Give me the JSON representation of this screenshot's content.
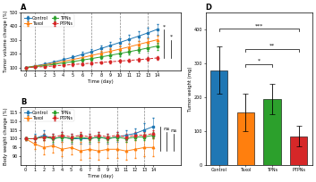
{
  "chart_data": [
    {
      "type": "line",
      "title": "A",
      "x": [
        0,
        1,
        2,
        3,
        4,
        5,
        6,
        7,
        8,
        9,
        10,
        11,
        12,
        13,
        14
      ],
      "xlabel": "Time (day)",
      "ylabel": "Tumor volume change (%)",
      "xlim": [
        -0.5,
        16.5
      ],
      "xticks": [
        0,
        1,
        2,
        3,
        4,
        5,
        6,
        7,
        8,
        9,
        10,
        11,
        12,
        13,
        14
      ],
      "ylim": [
        80,
        500
      ],
      "yticks": [
        100,
        200,
        300,
        400,
        500
      ],
      "legend": "upper left",
      "series": [
        {
          "name": "Control",
          "color": "#1f77b4",
          "marker": "square",
          "line_style": "solid",
          "values": [
            100,
            112,
            125,
            140,
            158,
            175,
            195,
            215,
            238,
            260,
            282,
            305,
            328,
            352,
            378
          ],
          "errors": [
            5,
            8,
            10,
            12,
            14,
            16,
            18,
            20,
            22,
            25,
            27,
            30,
            33,
            36,
            40
          ]
        },
        {
          "name": "Taxol",
          "color": "#ff7f0e",
          "marker": "triangle",
          "line_style": "solid",
          "values": [
            100,
            110,
            120,
            132,
            145,
            158,
            172,
            188,
            203,
            218,
            234,
            250,
            268,
            285,
            302
          ],
          "errors": [
            5,
            7,
            9,
            11,
            13,
            14,
            16,
            18,
            19,
            21,
            23,
            25,
            27,
            30,
            32
          ]
        },
        {
          "name": "TPNs",
          "color": "#2ca02c",
          "marker": "circle",
          "line_style": "solid",
          "values": [
            100,
            107,
            114,
            123,
            133,
            143,
            154,
            165,
            177,
            189,
            202,
            215,
            228,
            242,
            256
          ],
          "errors": [
            4,
            6,
            8,
            9,
            10,
            12,
            13,
            14,
            15,
            17,
            18,
            20,
            22,
            24,
            26
          ]
        },
        {
          "name": "PTPNs",
          "color": "#d62728",
          "marker": "circle",
          "line_style": "dashed",
          "values": [
            100,
            103,
            107,
            112,
            117,
            122,
            127,
            132,
            137,
            142,
            147,
            152,
            157,
            163,
            170
          ],
          "errors": [
            4,
            5,
            6,
            7,
            7,
            8,
            8,
            9,
            9,
            10,
            10,
            11,
            11,
            12,
            13
          ]
        }
      ],
      "vlines": {
        "x": [
          1,
          4,
          7,
          10,
          13
        ],
        "color": "#888888",
        "line_style": "dashed"
      },
      "brackets": [
        {
          "y1": 170,
          "y2": 378,
          "label": "*"
        },
        {
          "y1": 170,
          "y2": 302,
          "label": "*"
        }
      ]
    },
    {
      "type": "line",
      "title": "B",
      "x": [
        0,
        1,
        2,
        3,
        4,
        5,
        6,
        7,
        8,
        9,
        10,
        11,
        12,
        13,
        14
      ],
      "xlabel": "Time (day)",
      "ylabel": "Body weight change (%)",
      "xlim": [
        -0.5,
        17.0
      ],
      "xticks": [
        0,
        1,
        2,
        3,
        4,
        5,
        6,
        7,
        8,
        9,
        10,
        11,
        12,
        13,
        14
      ],
      "ylim": [
        85,
        118
      ],
      "yticks": [
        90,
        95,
        100,
        105,
        110,
        115
      ],
      "legend": "upper left",
      "series": [
        {
          "name": "Control",
          "color": "#1f77b4",
          "marker": "square",
          "line_style": "solid",
          "values": [
            100,
            100,
            102,
            100,
            101,
            100,
            100,
            100,
            101,
            100,
            101,
            102,
            103,
            105,
            107
          ],
          "errors": [
            1,
            3,
            3,
            3,
            3,
            3,
            3,
            3,
            3,
            3,
            3,
            3,
            3,
            4,
            5
          ]
        },
        {
          "name": "Taxol",
          "color": "#ff7f0e",
          "marker": "triangle",
          "line_style": "solid",
          "values": [
            100,
            97,
            95,
            96,
            94,
            95,
            93,
            94,
            93,
            94,
            94,
            93,
            94,
            95,
            95
          ],
          "errors": [
            1,
            3,
            4,
            4,
            4,
            4,
            5,
            5,
            5,
            5,
            5,
            5,
            5,
            5,
            5
          ]
        },
        {
          "name": "TPNs",
          "color": "#2ca02c",
          "marker": "circle",
          "line_style": "solid",
          "values": [
            100,
            100,
            101,
            100,
            101,
            100,
            101,
            100,
            101,
            100,
            101,
            100,
            101,
            101,
            102
          ],
          "errors": [
            1,
            2,
            2,
            2,
            2,
            2,
            2,
            2,
            2,
            2,
            2,
            2,
            2,
            2,
            2
          ]
        },
        {
          "name": "PTPNs",
          "color": "#d62728",
          "marker": "circle",
          "line_style": "dashed",
          "values": [
            100,
            100,
            101,
            101,
            102,
            101,
            102,
            101,
            102,
            101,
            102,
            101,
            102,
            102,
            103
          ],
          "errors": [
            1,
            2,
            2,
            2,
            2,
            2,
            2,
            2,
            2,
            2,
            2,
            2,
            2,
            2,
            2
          ]
        }
      ],
      "vlines": {
        "x": [
          1,
          4,
          7,
          10,
          13
        ],
        "color": "#888888",
        "line_style": "dashed"
      },
      "brackets": [
        {
          "y1": 93,
          "y2": 107
        },
        {
          "y1": 93,
          "y2": 104,
          "label": "ns"
        },
        {
          "y1": 93,
          "y2": 103,
          "label": "ns"
        }
      ]
    },
    {
      "type": "bar",
      "title": "D",
      "categories": [
        "Control",
        "Taxol",
        "TPNs",
        "PTPNs"
      ],
      "values": [
        280,
        155,
        195,
        85
      ],
      "errors": [
        70,
        55,
        45,
        30
      ],
      "colors": [
        "#1f77b4",
        "#ff7f0e",
        "#2ca02c",
        "#d62728"
      ],
      "ylabel": "Tumor weight (mg)",
      "ylim": [
        0,
        450
      ],
      "yticks": [
        0,
        100,
        200,
        300,
        400
      ],
      "brackets": [
        {
          "from": "Control",
          "to": "PTPNs",
          "y": 395,
          "label": "***"
        },
        {
          "from": "Taxol",
          "to": "TPNs",
          "y": 290,
          "label": "*"
        },
        {
          "from": "Taxol",
          "to": "PTPNs",
          "y": 335,
          "label": "**"
        }
      ]
    }
  ]
}
